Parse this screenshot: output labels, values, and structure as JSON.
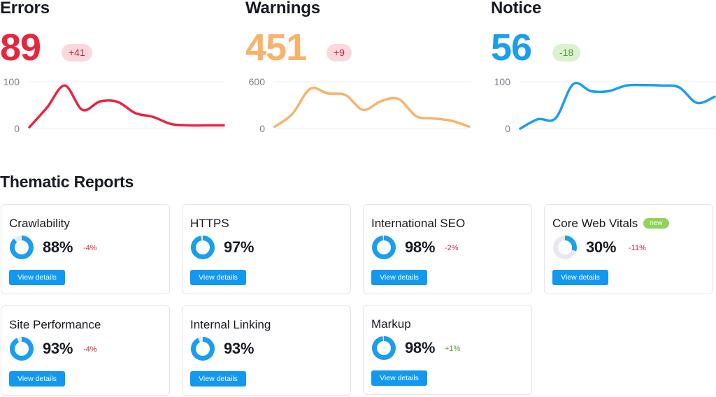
{
  "metrics": [
    {
      "title": "Errors",
      "value": "89",
      "delta": "+41",
      "delta_kind": "bad",
      "color": "#e8253f",
      "chart_data": {
        "type": "line",
        "y_ticks": [
          "100",
          "0"
        ],
        "ylim": [
          0,
          100
        ],
        "x": [
          0,
          1,
          2,
          3,
          4,
          5,
          6,
          7,
          8,
          9,
          10,
          11
        ],
        "values": [
          3,
          45,
          92,
          40,
          58,
          57,
          33,
          25,
          10,
          7,
          7,
          7
        ]
      }
    },
    {
      "title": "Warnings",
      "value": "451",
      "delta": "+9",
      "delta_kind": "bad",
      "color": "#f7b36b",
      "chart_data": {
        "type": "line",
        "y_ticks": [
          "600",
          "0"
        ],
        "ylim": [
          0,
          600
        ],
        "x": [
          0,
          1,
          2,
          3,
          4,
          5,
          6,
          7,
          8,
          9,
          10,
          11
        ],
        "values": [
          25,
          190,
          510,
          450,
          430,
          240,
          350,
          380,
          160,
          130,
          100,
          25
        ]
      }
    },
    {
      "title": "Notice",
      "value": "56",
      "delta": "-18",
      "delta_kind": "good",
      "color": "#1a9ef0",
      "chart_data": {
        "type": "line",
        "y_ticks": [
          "100",
          "0"
        ],
        "ylim": [
          0,
          100
        ],
        "x": [
          0,
          1,
          2,
          3,
          4,
          5,
          6,
          7,
          8,
          9,
          10,
          11
        ],
        "values": [
          0,
          20,
          22,
          95,
          80,
          80,
          92,
          93,
          92,
          88,
          55,
          68
        ]
      }
    }
  ],
  "thematic": {
    "title": "Thematic Reports",
    "button_label": "View details",
    "cards": [
      {
        "title": "Crawlability",
        "value": "88%",
        "percent": 88,
        "delta": "-4%",
        "delta_kind": "red",
        "badge": ""
      },
      {
        "title": "HTTPS",
        "value": "97%",
        "percent": 97,
        "delta": "",
        "delta_kind": "",
        "badge": ""
      },
      {
        "title": "International SEO",
        "value": "98%",
        "percent": 98,
        "delta": "-2%",
        "delta_kind": "red",
        "badge": ""
      },
      {
        "title": "Core Web Vitals",
        "value": "30%",
        "percent": 30,
        "delta": "-11%",
        "delta_kind": "red",
        "badge": "new"
      },
      {
        "title": "Site Performance",
        "value": "93%",
        "percent": 93,
        "delta": "-4%",
        "delta_kind": "red",
        "badge": ""
      },
      {
        "title": "Internal Linking",
        "value": "93%",
        "percent": 93,
        "delta": "",
        "delta_kind": "",
        "badge": ""
      },
      {
        "title": "Markup",
        "value": "98%",
        "percent": 98,
        "delta": "+1%",
        "delta_kind": "green",
        "badge": ""
      }
    ]
  },
  "colors": {
    "donut_fill": "#1a9ef0",
    "donut_track": "#e7e9ee",
    "button": "#1398f0"
  }
}
